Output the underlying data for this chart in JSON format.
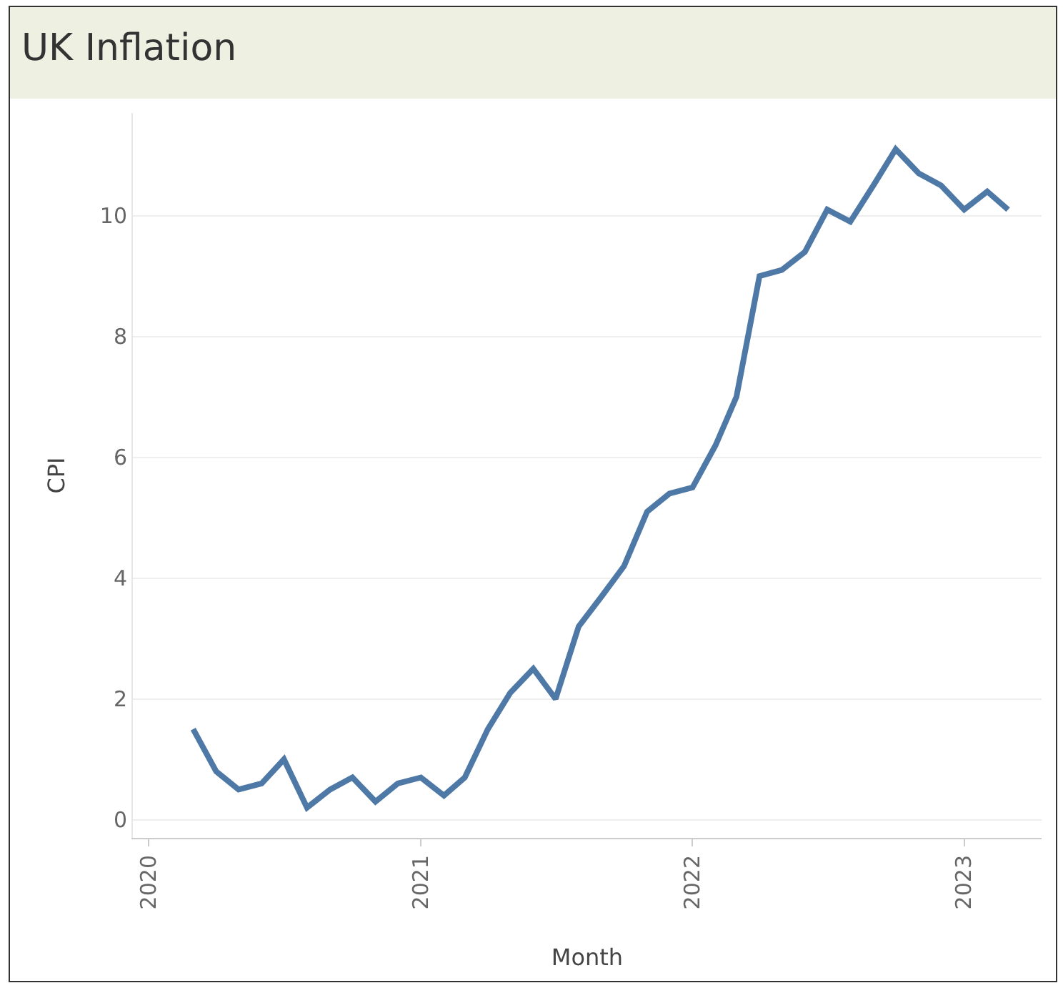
{
  "chart_data": {
    "type": "line",
    "title": "UK Inflation",
    "xlabel": "Month",
    "ylabel": "CPI",
    "x": [
      "2020-03",
      "2020-04",
      "2020-05",
      "2020-06",
      "2020-07",
      "2020-08",
      "2020-09",
      "2020-10",
      "2020-11",
      "2020-12",
      "2021-01",
      "2021-02",
      "2021-03",
      "2021-04",
      "2021-05",
      "2021-06",
      "2021-07",
      "2021-08",
      "2021-09",
      "2021-10",
      "2021-11",
      "2021-12",
      "2022-01",
      "2022-02",
      "2022-03",
      "2022-04",
      "2022-05",
      "2022-06",
      "2022-07",
      "2022-08",
      "2022-09",
      "2022-10",
      "2022-11",
      "2022-12",
      "2023-01",
      "2023-02",
      "2023-03"
    ],
    "series": [
      {
        "color": "#4e79a7",
        "values": [
          1.5,
          0.8,
          0.5,
          0.6,
          1.0,
          0.2,
          0.5,
          0.7,
          0.3,
          0.6,
          0.7,
          0.4,
          0.7,
          1.5,
          2.1,
          2.5,
          2.0,
          3.2,
          3.7,
          4.2,
          5.1,
          5.4,
          5.5,
          6.2,
          7.0,
          9.0,
          9.1,
          9.4,
          10.1,
          9.9,
          10.5,
          11.1,
          10.7,
          10.5,
          10.1,
          10.4,
          10.1
        ]
      }
    ],
    "xlim": [
      "2019-12-11",
      "2023-04-15"
    ],
    "xticks": [
      {
        "value": "2020-01-01",
        "label": "2020"
      },
      {
        "value": "2021-01-01",
        "label": "2021"
      },
      {
        "value": "2022-01-01",
        "label": "2022"
      },
      {
        "value": "2023-01-01",
        "label": "2023"
      }
    ],
    "ylim": [
      -0.3,
      11.7
    ],
    "yticks": [
      0,
      2,
      4,
      6,
      8,
      10
    ],
    "grid": "y",
    "marker": "none",
    "line_style": "solid"
  }
}
